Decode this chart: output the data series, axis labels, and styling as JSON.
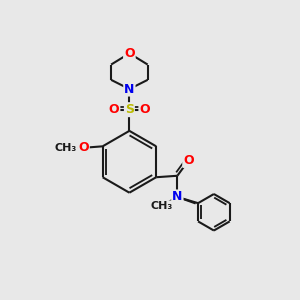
{
  "bg_color": "#e8e8e8",
  "bond_color": "#1a1a1a",
  "bond_width": 1.5,
  "atom_colors": {
    "O": "#ff0000",
    "N": "#0000ee",
    "S": "#bbbb00",
    "C": "#1a1a1a"
  },
  "font_size_atoms": 9,
  "font_size_small": 8,
  "scale": 1.0
}
